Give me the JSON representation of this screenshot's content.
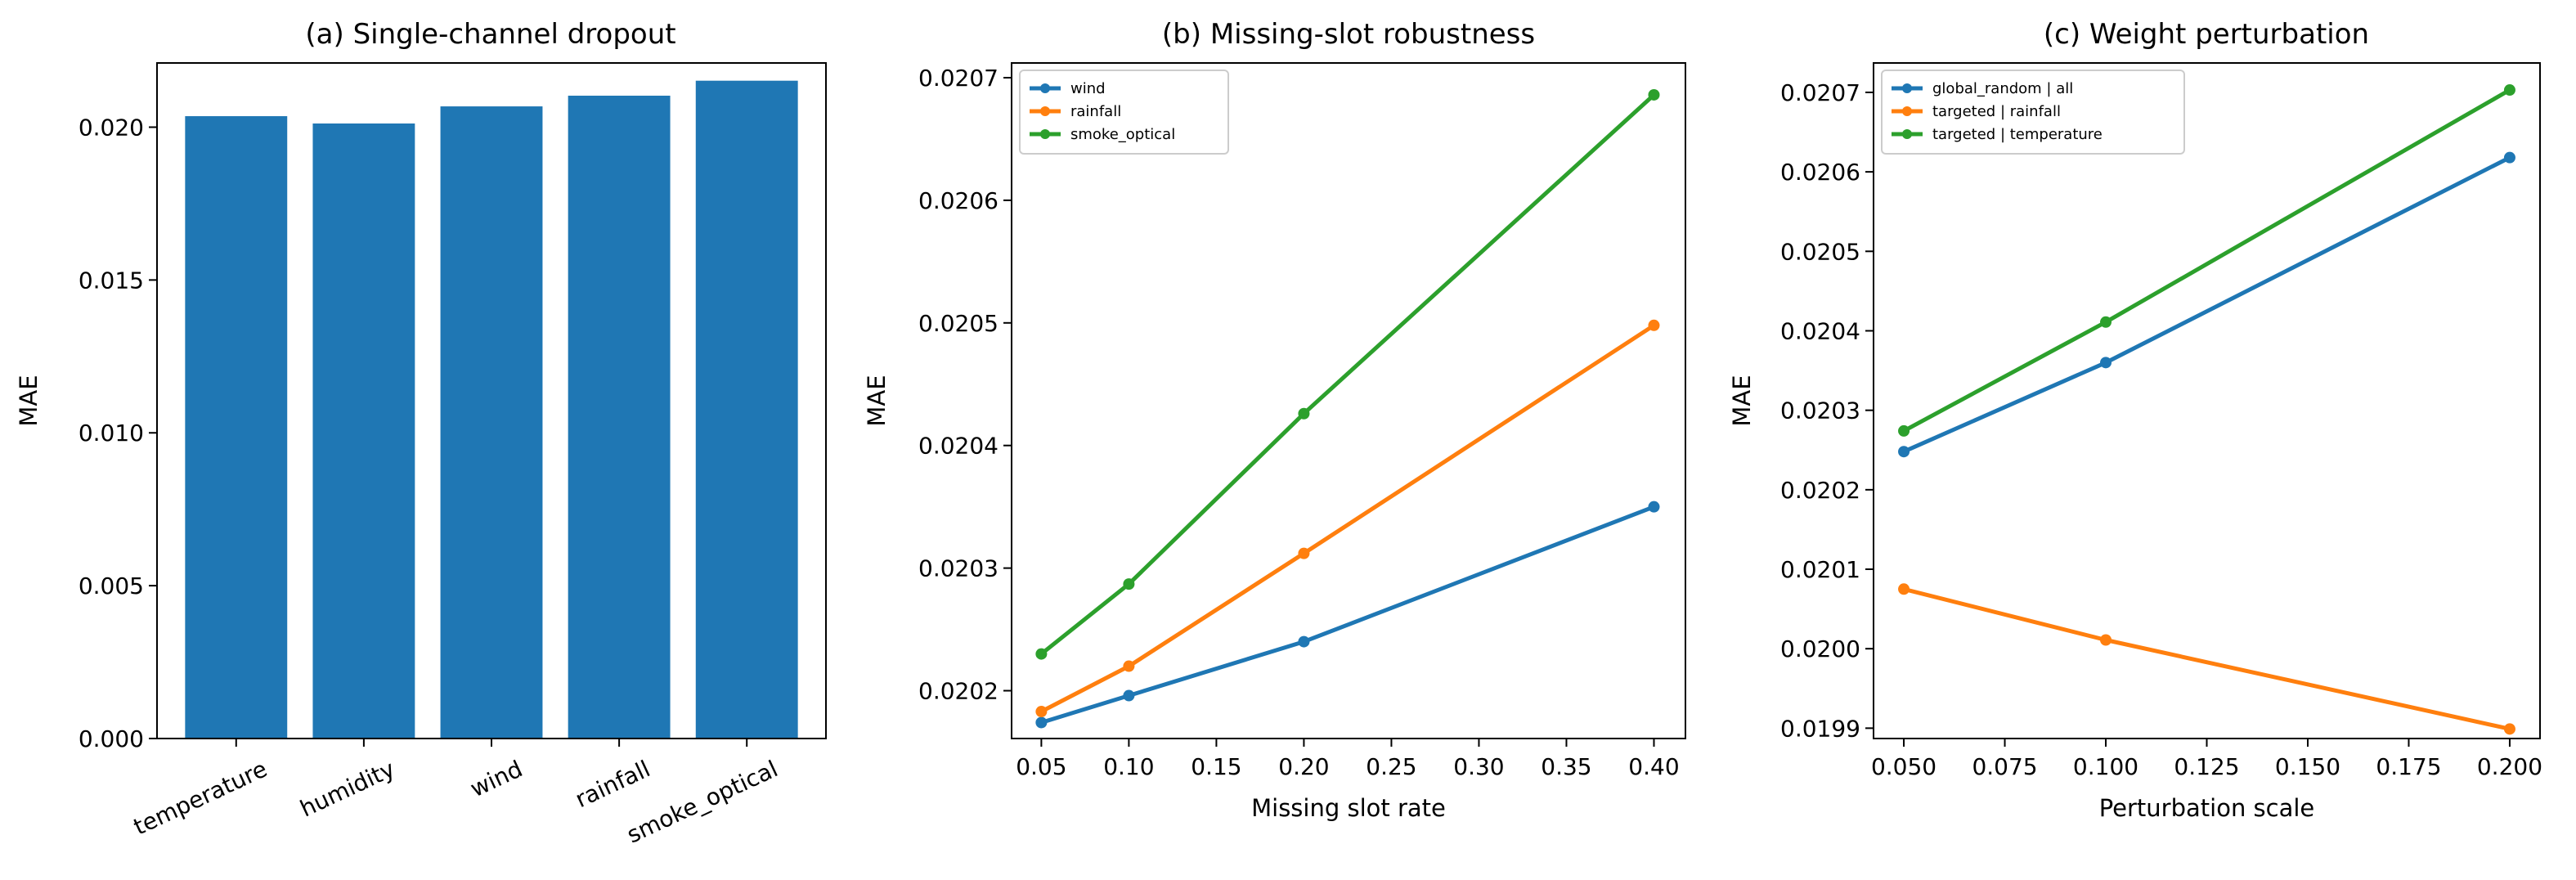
{
  "colors": {
    "blue": "#1f77b4",
    "orange": "#ff7f0e",
    "green": "#2ca02c"
  },
  "chart_data": [
    {
      "type": "bar",
      "title": "(a) Single-channel dropout",
      "xlabel": "",
      "ylabel": "MAE",
      "categories": [
        "temperature",
        "humidity",
        "wind",
        "rainfall",
        "smoke_optical"
      ],
      "values": [
        0.02036,
        0.02012,
        0.02068,
        0.02103,
        0.02152
      ],
      "ylim": [
        0,
        0.0221
      ],
      "yticks": [
        "0.000",
        "0.005",
        "0.010",
        "0.015",
        "0.020"
      ],
      "grid": false,
      "bar_color": "#1f77b4"
    },
    {
      "type": "line",
      "title": "(b) Missing-slot robustness",
      "xlabel": "Missing slot rate",
      "ylabel": "MAE",
      "x": [
        0.05,
        0.1,
        0.2,
        0.4
      ],
      "xlim": [
        0.033,
        0.418
      ],
      "ylim": [
        0.020161,
        0.020712
      ],
      "xticks": [
        "0.05",
        "0.10",
        "0.15",
        "0.20",
        "0.25",
        "0.30",
        "0.35",
        "0.40"
      ],
      "yticks": [
        "0.0202",
        "0.0203",
        "0.0204",
        "0.0205",
        "0.0206",
        "0.0207"
      ],
      "grid": false,
      "legend_position": "upper-left",
      "series": [
        {
          "name": "wind",
          "color": "#1f77b4",
          "values": [
            0.020174,
            0.020196,
            0.02024,
            0.02035
          ]
        },
        {
          "name": "rainfall",
          "color": "#ff7f0e",
          "values": [
            0.020183,
            0.02022,
            0.020312,
            0.020498
          ]
        },
        {
          "name": "smoke_optical",
          "color": "#2ca02c",
          "values": [
            0.02023,
            0.020287,
            0.020426,
            0.020686
          ]
        }
      ]
    },
    {
      "type": "line",
      "title": "(c) Weight perturbation",
      "xlabel": "Perturbation scale",
      "ylabel": "MAE",
      "x": [
        0.05,
        0.1,
        0.2
      ],
      "xlim": [
        0.0425,
        0.2075
      ],
      "ylim": [
        0.019887,
        0.020737
      ],
      "xticks": [
        "0.050",
        "0.075",
        "0.100",
        "0.125",
        "0.150",
        "0.175",
        "0.200"
      ],
      "yticks": [
        "0.0199",
        "0.0200",
        "0.0201",
        "0.0202",
        "0.0203",
        "0.0204",
        "0.0205",
        "0.0206",
        "0.0207"
      ],
      "grid": false,
      "legend_position": "upper-left",
      "series": [
        {
          "name": "global_random | all",
          "color": "#1f77b4",
          "values": [
            0.020248,
            0.02036,
            0.020618
          ]
        },
        {
          "name": "targeted | rainfall",
          "color": "#ff7f0e",
          "values": [
            0.020075,
            0.020011,
            0.019899
          ]
        },
        {
          "name": "targeted | temperature",
          "color": "#2ca02c",
          "values": [
            0.020274,
            0.020411,
            0.020703
          ]
        }
      ]
    }
  ]
}
